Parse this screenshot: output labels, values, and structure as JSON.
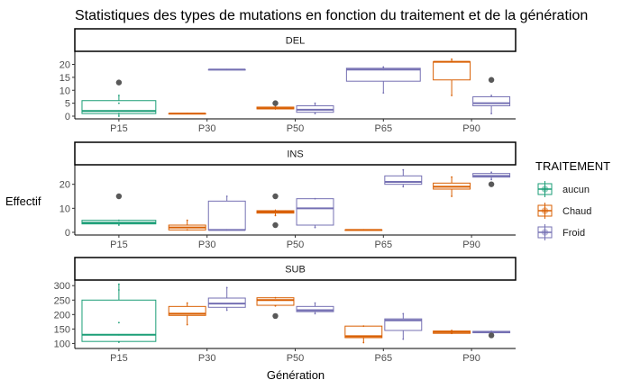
{
  "chart_data": {
    "type": "boxplot",
    "title": "Statistiques des types de mutations en fonction du traitement et de la génération",
    "xlabel": "Génération",
    "ylabel": "Effectif",
    "categories": [
      "P15",
      "P30",
      "P50",
      "P65",
      "P90"
    ],
    "legend": {
      "title": "TRAITEMENT",
      "position": "right",
      "entries": [
        {
          "name": "aucun",
          "color": "#1b9e77"
        },
        {
          "name": "Chaud",
          "color": "#d95f02"
        },
        {
          "name": "Froid",
          "color": "#7570b3"
        }
      ]
    },
    "grid": false,
    "outlier_color": "#595959",
    "facets": [
      {
        "label": "DEL",
        "ylim": [
          0,
          24
        ],
        "yticks": [
          0,
          5,
          10,
          15,
          20
        ],
        "boxes": [
          {
            "category": "P15",
            "series": "aucun",
            "min": 0,
            "q1": 1,
            "median": 2,
            "q3": 6,
            "max": 8,
            "points": [
              0,
              1,
              2,
              5,
              8
            ],
            "outliers": [
              13
            ]
          },
          {
            "category": "P30",
            "series": "Chaud",
            "min": 1,
            "q1": 1,
            "median": 1,
            "q3": 1,
            "max": 1,
            "points": [
              1
            ],
            "outliers": []
          },
          {
            "category": "P30",
            "series": "Froid",
            "min": 18,
            "q1": 18,
            "median": 18,
            "q3": 18,
            "max": 18,
            "points": [
              18
            ],
            "outliers": []
          },
          {
            "category": "P50",
            "series": "Chaud",
            "min": 2.5,
            "q1": 2.8,
            "median": 3,
            "q3": 3.5,
            "max": 4,
            "points": [
              3,
              3.5
            ],
            "outliers": [
              5
            ]
          },
          {
            "category": "P50",
            "series": "Froid",
            "min": 1,
            "q1": 1.5,
            "median": 2.5,
            "q3": 4,
            "max": 5,
            "points": [
              1,
              5
            ],
            "outliers": []
          },
          {
            "category": "P65",
            "series": "Froid",
            "min": 9,
            "q1": 13.5,
            "median": 18,
            "q3": 18.5,
            "max": 19,
            "points": [
              9,
              18,
              19
            ],
            "outliers": []
          },
          {
            "category": "P90",
            "series": "Chaud",
            "min": 8,
            "q1": 14,
            "median": 21,
            "q3": 21,
            "max": 22,
            "points": [
              8,
              22
            ],
            "outliers": []
          },
          {
            "category": "P90",
            "series": "Froid",
            "min": 1,
            "q1": 4,
            "median": 5,
            "q3": 7.5,
            "max": 8,
            "points": [
              1,
              8
            ],
            "outliers": [
              14
            ]
          }
        ]
      },
      {
        "label": "INS",
        "ylim": [
          0,
          27
        ],
        "yticks": [
          0,
          10,
          20
        ],
        "boxes": [
          {
            "category": "P15",
            "series": "aucun",
            "min": 3,
            "q1": 3.5,
            "median": 4,
            "q3": 5,
            "max": 5,
            "points": [
              3,
              5
            ],
            "outliers": [
              15
            ]
          },
          {
            "category": "P30",
            "series": "Chaud",
            "min": 1,
            "q1": 1,
            "median": 2,
            "q3": 3,
            "max": 5,
            "points": [
              1,
              5
            ],
            "outliers": []
          },
          {
            "category": "P30",
            "series": "Froid",
            "min": 1,
            "q1": 1,
            "median": 1,
            "q3": 13,
            "max": 15,
            "points": [
              1,
              15
            ],
            "outliers": []
          },
          {
            "category": "P50",
            "series": "Chaud",
            "min": 7,
            "q1": 8,
            "median": 8.5,
            "q3": 9,
            "max": 9.5,
            "points": [
              7,
              9
            ],
            "outliers": [
              3,
              15
            ]
          },
          {
            "category": "P50",
            "series": "Froid",
            "min": 2,
            "q1": 3,
            "median": 10,
            "q3": 14,
            "max": 14,
            "points": [
              2,
              14
            ],
            "outliers": []
          },
          {
            "category": "P65",
            "series": "Chaud",
            "min": 1,
            "q1": 1,
            "median": 1,
            "q3": 1,
            "max": 1,
            "points": [
              1
            ],
            "outliers": []
          },
          {
            "category": "P65",
            "series": "Froid",
            "min": 19,
            "q1": 20,
            "median": 21,
            "q3": 23.5,
            "max": 26,
            "points": [
              19,
              26
            ],
            "outliers": []
          },
          {
            "category": "P90",
            "series": "Chaud",
            "min": 15,
            "q1": 18,
            "median": 19,
            "q3": 20.5,
            "max": 23,
            "points": [
              15,
              23
            ],
            "outliers": []
          },
          {
            "category": "P90",
            "series": "Froid",
            "min": 22,
            "q1": 23,
            "median": 23.5,
            "q3": 24.5,
            "max": 25,
            "points": [
              22,
              25
            ],
            "outliers": [
              20
            ]
          }
        ]
      },
      {
        "label": "SUB",
        "ylim": [
          92,
          310
        ],
        "yticks": [
          100,
          150,
          200,
          250,
          300
        ],
        "boxes": [
          {
            "category": "P15",
            "series": "aucun",
            "min": 102,
            "q1": 107,
            "median": 130,
            "q3": 250,
            "max": 305,
            "points": [
              105,
              130,
              172,
              285,
              305
            ],
            "outliers": []
          },
          {
            "category": "P30",
            "series": "Chaud",
            "min": 165,
            "q1": 197,
            "median": 203,
            "q3": 228,
            "max": 240,
            "points": [
              165,
              240
            ],
            "outliers": []
          },
          {
            "category": "P30",
            "series": "Froid",
            "min": 215,
            "q1": 225,
            "median": 238,
            "q3": 257,
            "max": 293,
            "points": [
              215,
              293
            ],
            "outliers": []
          },
          {
            "category": "P50",
            "series": "Chaud",
            "min": 230,
            "q1": 232,
            "median": 250,
            "q3": 258,
            "max": 258,
            "points": [
              230,
              258
            ],
            "outliers": [
              195
            ]
          },
          {
            "category": "P50",
            "series": "Froid",
            "min": 203,
            "q1": 210,
            "median": 215,
            "q3": 228,
            "max": 240,
            "points": [
              203,
              240
            ],
            "outliers": []
          },
          {
            "category": "P65",
            "series": "Chaud",
            "min": 103,
            "q1": 120,
            "median": 125,
            "q3": 160,
            "max": 160,
            "points": [
              103,
              160
            ],
            "outliers": []
          },
          {
            "category": "P65",
            "series": "Froid",
            "min": 115,
            "q1": 145,
            "median": 180,
            "q3": 185,
            "max": 203,
            "points": [
              115,
              203
            ],
            "outliers": []
          },
          {
            "category": "P90",
            "series": "Chaud",
            "min": 135,
            "q1": 135,
            "median": 140,
            "q3": 143,
            "max": 145,
            "points": [
              135,
              145
            ],
            "outliers": []
          },
          {
            "category": "P90",
            "series": "Froid",
            "min": 135,
            "q1": 137,
            "median": 140,
            "q3": 142,
            "max": 142,
            "points": [
              135,
              142
            ],
            "outliers": [
              128
            ]
          }
        ]
      }
    ]
  }
}
